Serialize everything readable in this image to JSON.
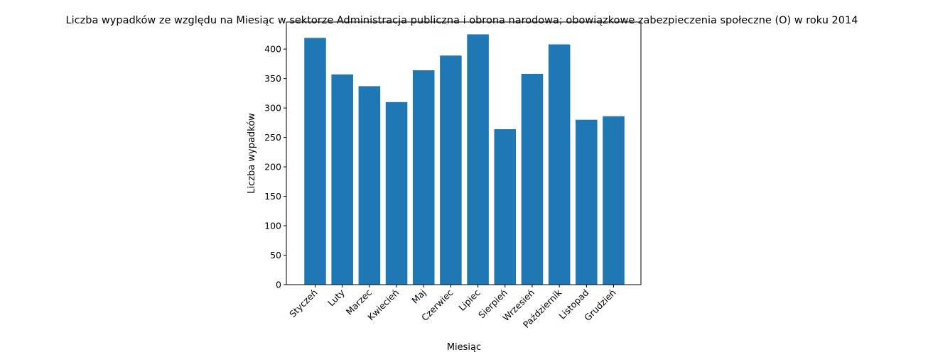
{
  "chart_data": {
    "type": "bar",
    "title": "Liczba wypadków ze względu na Miesiąc w sektorze Administracja publiczna i obrona narodowa; obowiązkowe zabezpieczenia społeczne (O) w roku 2014",
    "xlabel": "Miesiąc",
    "ylabel": "Liczba wypadków",
    "categories": [
      "Styczeń",
      "Luty",
      "Marzec",
      "Kwiecień",
      "Maj",
      "Czerwiec",
      "Lipiec",
      "Sierpień",
      "Wrzesień",
      "Październik",
      "Listopad",
      "Grudzień"
    ],
    "values": [
      419,
      357,
      337,
      310,
      364,
      389,
      425,
      264,
      358,
      408,
      280,
      286
    ],
    "ylim": [
      0,
      446
    ],
    "yticks": [
      0,
      50,
      100,
      150,
      200,
      250,
      300,
      350,
      400
    ],
    "grid": false,
    "bar_color": "#1f77b4"
  }
}
